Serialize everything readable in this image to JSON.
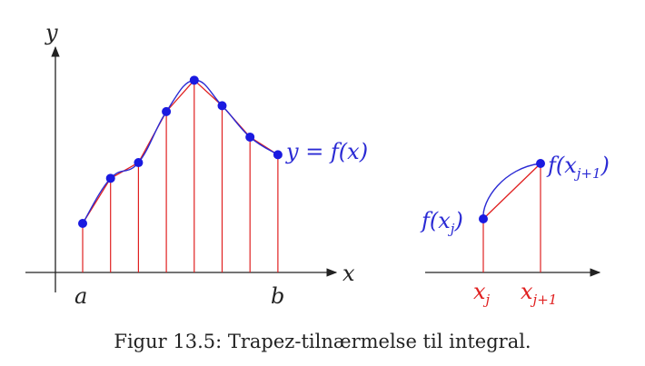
{
  "colors": {
    "axis": "#222222",
    "curve": "#2a2ad4",
    "trapezoid": "#e02020",
    "point": "#1a1ae0",
    "label_black": "#222222",
    "label_blue": "#2a2ad4",
    "label_red": "#e02020"
  },
  "left_plot": {
    "y_axis_label": "y",
    "x_axis_label": "x",
    "a_label": "a",
    "b_label": "b",
    "curve_label": "y = f(x)",
    "nodes_y": [
      2.5,
      4.8,
      5.6,
      8.2,
      9.8,
      8.5,
      6.9,
      6.0
    ]
  },
  "right_plot": {
    "left_value_label": "f(x_j)",
    "right_value_label": "f(x_{j+1})",
    "left_node_label": "x_j",
    "right_node_label": "x_{j+1}",
    "nodes_y": [
      2.5,
      5.5
    ]
  },
  "caption": "Figur 13.5: Trapez-tilnærmelse til integral."
}
